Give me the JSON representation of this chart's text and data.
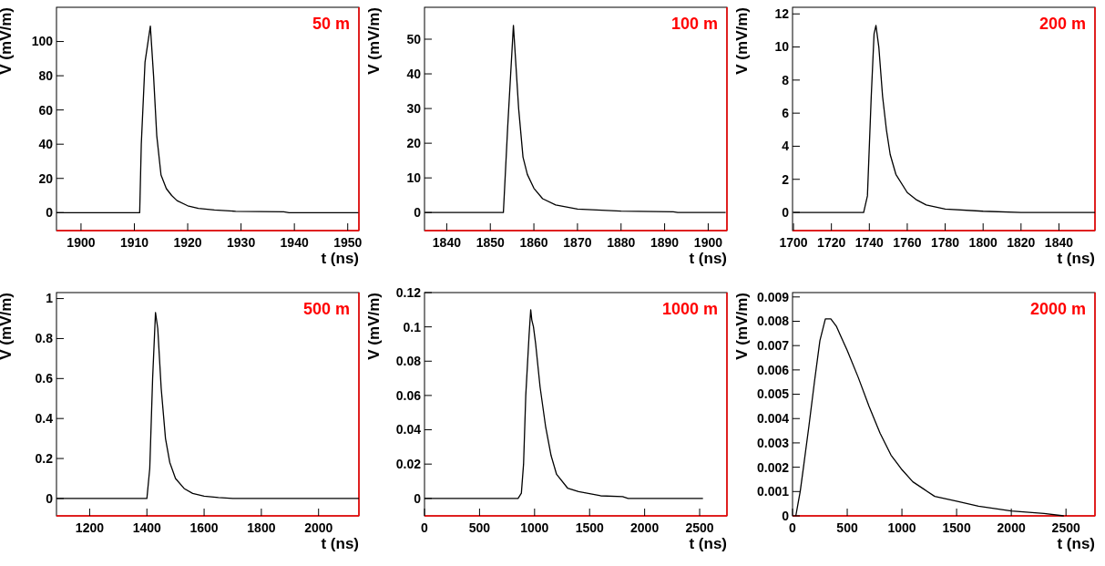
{
  "chart_data": [
    {
      "type": "line",
      "xlabel": "t (ns)",
      "ylabel": "V (mV/m)",
      "annotations": [
        "50 m"
      ],
      "xlim": [
        1895.4,
        1952.1
      ],
      "xticks": [
        1900,
        1910,
        1920,
        1930,
        1940,
        1950
      ],
      "ylim": [
        -10.5,
        120
      ],
      "yticks": [
        0,
        20,
        40,
        60,
        80,
        100
      ],
      "series": [
        {
          "color": "#000000",
          "x": [
            1895.4,
            1911,
            1911.3,
            1912,
            1913,
            1913.6,
            1914.2,
            1915,
            1916,
            1917,
            1918,
            1920,
            1922,
            1925,
            1929,
            1938,
            1939,
            1952
          ],
          "values": [
            0,
            0,
            40,
            88,
            109,
            80,
            45,
            22,
            14,
            10,
            7,
            4,
            2.5,
            1.5,
            0.8,
            0.5,
            0,
            0
          ]
        }
      ]
    },
    {
      "type": "line",
      "xlabel": "t (ns)",
      "ylabel": "V (mV/m)",
      "annotations": [
        "100 m"
      ],
      "xlim": [
        1834.9,
        1904.3
      ],
      "xticks": [
        1840,
        1850,
        1860,
        1870,
        1880,
        1890,
        1900
      ],
      "ylim": [
        -5.2,
        59.2
      ],
      "yticks": [
        0,
        10,
        20,
        30,
        40,
        50
      ],
      "series": [
        {
          "color": "#000000",
          "x": [
            1835,
            1853,
            1854,
            1855.3,
            1856.5,
            1857.5,
            1858.5,
            1860,
            1862,
            1865,
            1870,
            1880,
            1892,
            1893,
            1904
          ],
          "values": [
            0,
            0,
            25,
            54,
            30,
            16,
            11,
            7,
            4,
            2.2,
            1,
            0.4,
            0.2,
            0,
            0
          ]
        }
      ]
    },
    {
      "type": "line",
      "xlabel": "t (ns)",
      "ylabel": "V (mV/m)",
      "annotations": [
        "200 m"
      ],
      "xlim": [
        1699.5,
        1859
      ],
      "xticks": [
        1700,
        1720,
        1740,
        1760,
        1780,
        1800,
        1820,
        1840
      ],
      "ylim": [
        -1.1,
        12.4
      ],
      "yticks": [
        0,
        2,
        4,
        6,
        8,
        10,
        12
      ],
      "series": [
        {
          "color": "#000000",
          "x": [
            1700,
            1737,
            1739,
            1741,
            1742.5,
            1743.5,
            1745,
            1747,
            1749,
            1751,
            1754,
            1760,
            1765,
            1770,
            1780,
            1800,
            1820,
            1859
          ],
          "values": [
            0,
            0,
            1,
            7,
            10.8,
            11.3,
            10,
            7,
            5,
            3.5,
            2.3,
            1.2,
            0.75,
            0.45,
            0.2,
            0.07,
            0,
            0
          ]
        }
      ]
    },
    {
      "type": "line",
      "xlabel": "t (ns)",
      "ylabel": "V (mV/m)",
      "annotations": [
        "500 m"
      ],
      "xlim": [
        1084,
        2141
      ],
      "xticks": [
        1200,
        1400,
        1600,
        1800,
        2000
      ],
      "ylim": [
        -0.087,
        1.03
      ],
      "yticks": [
        0,
        0.2,
        0.4,
        0.6,
        0.8,
        1
      ],
      "series": [
        {
          "color": "#000000",
          "x": [
            1084,
            1400,
            1410,
            1420,
            1430,
            1438,
            1450,
            1465,
            1480,
            1500,
            1530,
            1560,
            1600,
            1650,
            1700,
            2141
          ],
          "values": [
            0,
            0,
            0.15,
            0.6,
            0.93,
            0.85,
            0.55,
            0.3,
            0.18,
            0.1,
            0.05,
            0.025,
            0.012,
            0.005,
            0,
            0
          ]
        }
      ]
    },
    {
      "type": "line",
      "xlabel": "t (ns)",
      "ylabel": "V (mV/m)",
      "annotations": [
        "1000 m"
      ],
      "xlim": [
        0,
        2748
      ],
      "xticks": [
        0,
        500,
        1000,
        1500,
        2000,
        2500
      ],
      "ylim": [
        -0.0102,
        0.12
      ],
      "yticks": [
        0,
        0.02,
        0.04,
        0.06,
        0.08,
        0.1,
        0.12
      ],
      "series": [
        {
          "color": "#000000",
          "x": [
            0,
            850,
            880,
            900,
            920,
            950,
            965,
            975,
            990,
            1010,
            1050,
            1100,
            1150,
            1200,
            1300,
            1400,
            1600,
            1800,
            1850,
            2530
          ],
          "values": [
            0,
            0,
            0.003,
            0.02,
            0.06,
            0.095,
            0.11,
            0.104,
            0.1,
            0.09,
            0.065,
            0.042,
            0.025,
            0.014,
            0.006,
            0.004,
            0.0015,
            0.001,
            0,
            0
          ]
        }
      ]
    },
    {
      "type": "line",
      "xlabel": "t (ns)",
      "ylabel": "V (mV/m)",
      "annotations": [
        "2000 m"
      ],
      "xlim": [
        0,
        2765
      ],
      "xticks": [
        0,
        500,
        1000,
        1500,
        2000,
        2500
      ],
      "ylim": [
        0,
        0.00918
      ],
      "yticks": [
        0,
        0.001,
        0.002,
        0.003,
        0.004,
        0.005,
        0.006,
        0.007,
        0.008,
        0.009
      ],
      "series": [
        {
          "color": "#000000",
          "x": [
            30,
            50,
            70,
            100,
            150,
            200,
            250,
            300,
            350,
            400,
            450,
            500,
            600,
            700,
            800,
            900,
            1000,
            1100,
            1200,
            1300,
            1500,
            1700,
            2000,
            2300,
            2480
          ],
          "values": [
            0,
            0.0005,
            0.001,
            0.002,
            0.0037,
            0.0055,
            0.0072,
            0.0081,
            0.0081,
            0.0078,
            0.0073,
            0.0068,
            0.0057,
            0.0045,
            0.0034,
            0.0025,
            0.0019,
            0.0014,
            0.0011,
            0.0008,
            0.0006,
            0.0004,
            0.0002,
            0.0001,
            0
          ]
        }
      ]
    }
  ]
}
